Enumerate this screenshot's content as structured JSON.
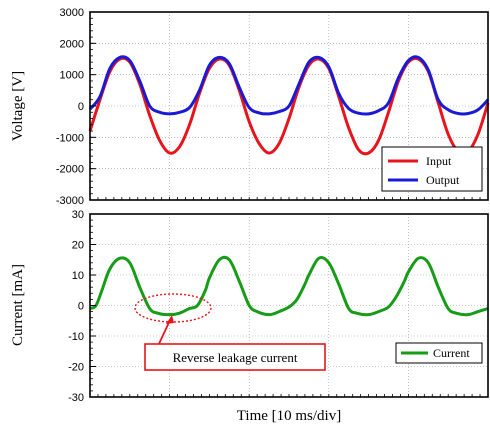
{
  "chart_data": [
    {
      "type": "line",
      "ylabel": "Voltage [V]",
      "xlabel": "",
      "ylim": [
        -3000,
        3000
      ],
      "yticks": [
        3000,
        2000,
        1000,
        0,
        -1000,
        -2000,
        -3000
      ],
      "xlim": [
        0,
        100
      ],
      "x_grid_divisions": 10,
      "grid": true,
      "legend_position": "bottom-right",
      "series": [
        {
          "name": "Input",
          "color": "#e8141c",
          "x": [
            0,
            2.5,
            5,
            7.5,
            10,
            12.5,
            15,
            17.5,
            20,
            22.5,
            25,
            27.5,
            30,
            32.5,
            35,
            37.5,
            40,
            42.5,
            45,
            47.5,
            50,
            52.5,
            55,
            57.5,
            60,
            62.5,
            65,
            67.5,
            70,
            72.5,
            75,
            77.5,
            80,
            82.5,
            85,
            87.5,
            90,
            92.5,
            95,
            97.5,
            100
          ],
          "y": [
            -800,
            200,
            1100,
            1500,
            1400,
            700,
            -300,
            -1100,
            -1500,
            -1300,
            -600,
            400,
            1200,
            1500,
            1300,
            500,
            -500,
            -1200,
            -1500,
            -1200,
            -400,
            600,
            1300,
            1500,
            1200,
            300,
            -700,
            -1400,
            -1500,
            -1100,
            -200,
            800,
            1400,
            1500,
            1100,
            100,
            -900,
            -1450,
            -1450,
            -900,
            100
          ]
        },
        {
          "name": "Output",
          "color": "#1a1ad6",
          "x": [
            0,
            2.5,
            5,
            7.5,
            10,
            12.5,
            15,
            17.5,
            20,
            22.5,
            25,
            27.5,
            30,
            32.5,
            35,
            37.5,
            40,
            42.5,
            45,
            47.5,
            50,
            52.5,
            55,
            57.5,
            60,
            62.5,
            65,
            67.5,
            70,
            72.5,
            75,
            77.5,
            80,
            82.5,
            85,
            87.5,
            90,
            92.5,
            95,
            97.5,
            100
          ],
          "y": [
            -100,
            300,
            1200,
            1550,
            1450,
            800,
            0,
            -200,
            -250,
            -200,
            -50,
            500,
            1300,
            1550,
            1350,
            600,
            -50,
            -220,
            -250,
            -180,
            0,
            700,
            1400,
            1550,
            1250,
            400,
            -80,
            -230,
            -250,
            -150,
            100,
            900,
            1450,
            1550,
            1150,
            200,
            -120,
            -240,
            -240,
            -120,
            200
          ]
        }
      ]
    },
    {
      "type": "line",
      "ylabel": "Current [mA]",
      "xlabel": "Time [10 ms/div]",
      "ylim": [
        -30,
        30
      ],
      "yticks": [
        30,
        20,
        10,
        0,
        -10,
        -20,
        -30
      ],
      "xlim": [
        0,
        100
      ],
      "x_grid_divisions": 10,
      "grid": true,
      "legend_position": "bottom-right",
      "series": [
        {
          "name": "Current",
          "color": "#169c16",
          "x": [
            0,
            1.5,
            3,
            5,
            7.5,
            10,
            12.5,
            15,
            17,
            20,
            22.5,
            25,
            27,
            29,
            30,
            32.5,
            35,
            37.5,
            40,
            42,
            45,
            47.5,
            50,
            52,
            54,
            55,
            57.5,
            60,
            62.5,
            65,
            67,
            70,
            72.5,
            75,
            77,
            79,
            80,
            82.5,
            85,
            87.5,
            90,
            92,
            95,
            97.5,
            100
          ],
          "y": [
            -1,
            0,
            5,
            12,
            15.5,
            14,
            6,
            -1,
            -2.5,
            -3,
            -2.5,
            -1,
            0,
            5,
            9,
            15,
            15,
            8,
            0,
            -2,
            -3,
            -2,
            -0.5,
            2,
            7,
            10,
            15.5,
            14,
            7,
            -1,
            -2.5,
            -3,
            -2,
            -0.5,
            3,
            8,
            11,
            15.5,
            14,
            6,
            -1,
            -2.5,
            -3,
            -2,
            -1
          ]
        }
      ],
      "annotation": {
        "text": "Reverse leakage current",
        "target_x": 20,
        "target_y": -2,
        "border_color": "#e8141c"
      }
    }
  ]
}
